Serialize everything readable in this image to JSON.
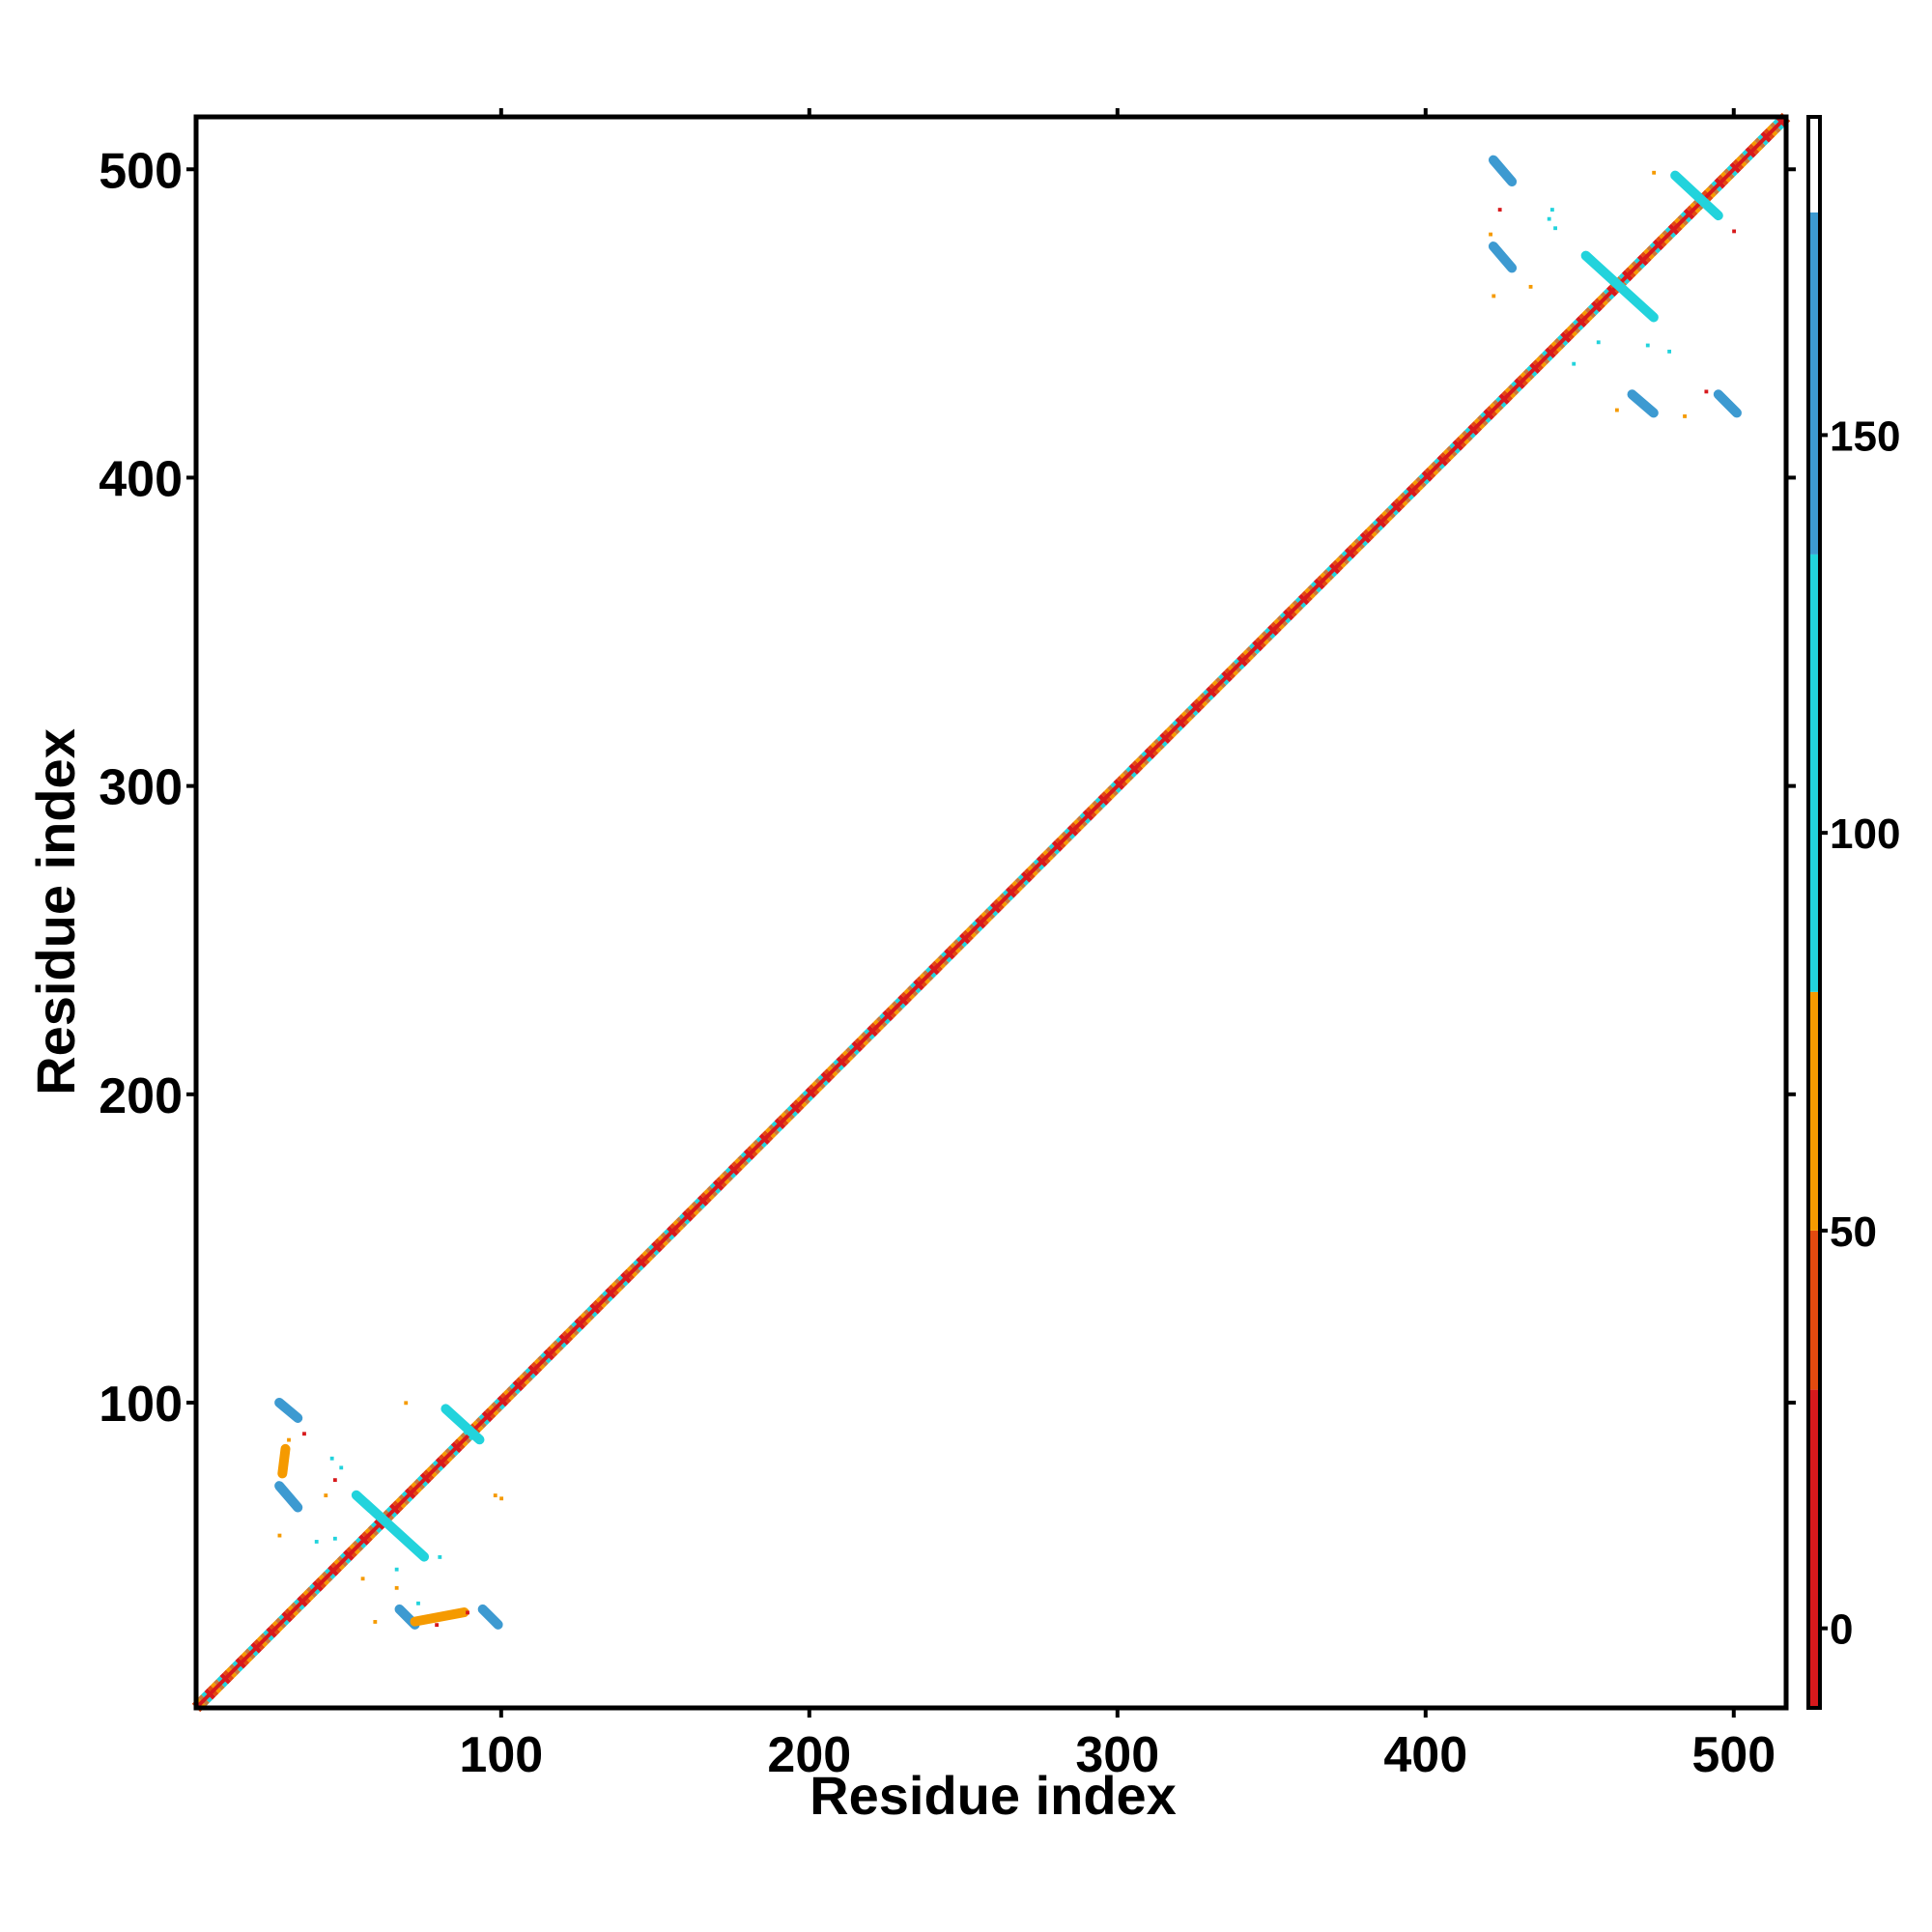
{
  "chart_data": {
    "type": "heatmap",
    "title": "",
    "xlabel": "Residue index",
    "ylabel": "Residue index",
    "xlim": [
      1,
      517
    ],
    "ylim": [
      1,
      517
    ],
    "x_ticks": [
      100,
      200,
      300,
      400,
      500
    ],
    "y_ticks": [
      100,
      200,
      300,
      400,
      500
    ],
    "colorbar": {
      "range": [
        -10,
        190
      ],
      "ticks": [
        0,
        50,
        100,
        150
      ],
      "bands": [
        {
          "from": -10,
          "to": 30,
          "color": "#d7191c"
        },
        {
          "from": 30,
          "to": 50,
          "color": "#e34a0f"
        },
        {
          "from": 50,
          "to": 80,
          "color": "#f59a00"
        },
        {
          "from": 80,
          "to": 135,
          "color": "#22d3dc"
        },
        {
          "from": 135,
          "to": 178,
          "color": "#3d9ad1"
        },
        {
          "from": 178,
          "to": 190,
          "color": "#ffffff"
        }
      ]
    },
    "diagonal": {
      "start": 1,
      "end": 517,
      "color_pattern": [
        "#d7191c",
        "#e34a0f",
        "#f59a00",
        "#c97a3a",
        "#22d3dc"
      ]
    },
    "off_diagonal_segments": [
      {
        "x0": 28,
        "y0": 100,
        "x1": 34,
        "y1": 95,
        "value": 150
      },
      {
        "x0": 28,
        "y0": 73,
        "x1": 34,
        "y1": 66,
        "value": 150
      },
      {
        "x0": 53,
        "y0": 70,
        "x1": 75,
        "y1": 50,
        "value": 110
      },
      {
        "x0": 67,
        "y0": 33,
        "x1": 72,
        "y1": 28,
        "value": 150
      },
      {
        "x0": 94,
        "y0": 33,
        "x1": 99,
        "y1": 28,
        "value": 150
      },
      {
        "x0": 82,
        "y0": 98,
        "x1": 93,
        "y1": 88,
        "value": 110
      },
      {
        "x0": 72,
        "y0": 29,
        "x1": 88,
        "y1": 32,
        "value": 60
      },
      {
        "x0": 30,
        "y0": 85,
        "x1": 29,
        "y1": 77,
        "value": 60
      },
      {
        "x0": 422,
        "y0": 503,
        "x1": 428,
        "y1": 496,
        "value": 150
      },
      {
        "x0": 422,
        "y0": 475,
        "x1": 428,
        "y1": 468,
        "value": 150
      },
      {
        "x0": 452,
        "y0": 472,
        "x1": 474,
        "y1": 452,
        "value": 110
      },
      {
        "x0": 467,
        "y0": 427,
        "x1": 474,
        "y1": 421,
        "value": 150
      },
      {
        "x0": 495,
        "y0": 427,
        "x1": 501,
        "y1": 421,
        "value": 150
      },
      {
        "x0": 481,
        "y0": 498,
        "x1": 495,
        "y1": 485,
        "value": 110
      }
    ],
    "scatter_points": [
      {
        "x": 31,
        "y": 88,
        "value": 60
      },
      {
        "x": 36,
        "y": 90,
        "value": 20
      },
      {
        "x": 45,
        "y": 82,
        "value": 110
      },
      {
        "x": 48,
        "y": 79,
        "value": 110
      },
      {
        "x": 43,
        "y": 70,
        "value": 60
      },
      {
        "x": 46,
        "y": 75,
        "value": 20
      },
      {
        "x": 28,
        "y": 57,
        "value": 60
      },
      {
        "x": 40,
        "y": 55,
        "value": 110
      },
      {
        "x": 46,
        "y": 56,
        "value": 110
      },
      {
        "x": 55,
        "y": 43,
        "value": 60
      },
      {
        "x": 66,
        "y": 46,
        "value": 110
      },
      {
        "x": 80,
        "y": 50,
        "value": 110
      },
      {
        "x": 69,
        "y": 100,
        "value": 60
      },
      {
        "x": 59,
        "y": 29,
        "value": 60
      },
      {
        "x": 79,
        "y": 28,
        "value": 20
      },
      {
        "x": 89,
        "y": 32,
        "value": 20
      },
      {
        "x": 98,
        "y": 70,
        "value": 60
      },
      {
        "x": 100,
        "y": 69,
        "value": 60
      },
      {
        "x": 66,
        "y": 40,
        "value": 60
      },
      {
        "x": 73,
        "y": 35,
        "value": 110
      },
      {
        "x": 424,
        "y": 487,
        "value": 20
      },
      {
        "x": 421,
        "y": 479,
        "value": 60
      },
      {
        "x": 440,
        "y": 484,
        "value": 110
      },
      {
        "x": 442,
        "y": 481,
        "value": 110
      },
      {
        "x": 434,
        "y": 462,
        "value": 60
      },
      {
        "x": 422,
        "y": 459,
        "value": 60
      },
      {
        "x": 456,
        "y": 444,
        "value": 110
      },
      {
        "x": 472,
        "y": 443,
        "value": 110
      },
      {
        "x": 479,
        "y": 441,
        "value": 110
      },
      {
        "x": 484,
        "y": 420,
        "value": 60
      },
      {
        "x": 491,
        "y": 428,
        "value": 20
      },
      {
        "x": 462,
        "y": 422,
        "value": 60
      },
      {
        "x": 448,
        "y": 437,
        "value": 110
      },
      {
        "x": 474,
        "y": 499,
        "value": 60
      },
      {
        "x": 500,
        "y": 480,
        "value": 20
      },
      {
        "x": 441,
        "y": 487,
        "value": 110
      }
    ]
  }
}
